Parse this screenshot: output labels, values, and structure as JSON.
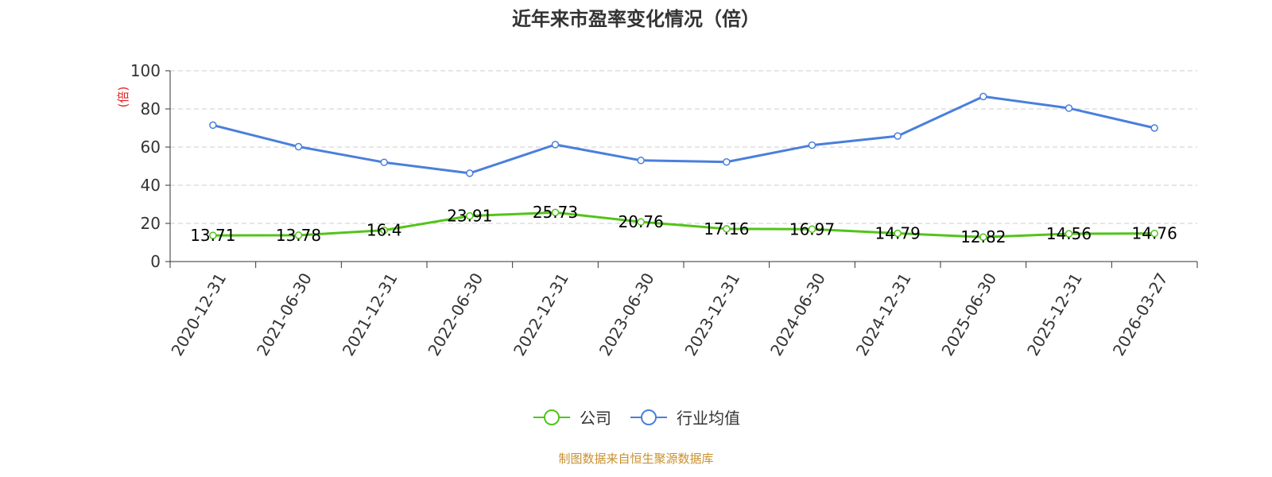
{
  "chart_data": {
    "type": "line",
    "title": "近年来市盈率变化情况（倍）",
    "ylabel": "(倍)",
    "ylim": [
      0,
      100
    ],
    "yticks": [
      0,
      20,
      40,
      60,
      80,
      100
    ],
    "grid": true,
    "legend_position": "bottom",
    "categories": [
      "2020-12-31",
      "2021-06-30",
      "2021-12-31",
      "2022-06-30",
      "2022-12-31",
      "2023-06-30",
      "2023-12-31",
      "2024-06-30",
      "2024-12-31",
      "2025-06-30",
      "2025-12-31",
      "2026-03-27"
    ],
    "series": [
      {
        "name": "公司",
        "color": "#52c41a",
        "values": [
          13.71,
          13.78,
          16.4,
          23.91,
          25.73,
          20.76,
          17.16,
          16.97,
          14.79,
          12.82,
          14.56,
          14.76
        ],
        "labels": [
          "13.71",
          "13.78",
          "16.4",
          "23.91",
          "25.73",
          "20.76",
          "17.16",
          "16.97",
          "14.79",
          "12.82",
          "14.56",
          "14.76"
        ]
      },
      {
        "name": "行业均值",
        "color": "#4a7fdc",
        "values": [
          71.5,
          60.2,
          52.0,
          46.3,
          61.3,
          53.0,
          52.2,
          61.0,
          65.8,
          86.5,
          80.4,
          70.0
        ]
      }
    ]
  },
  "source_note": "制图数据来自恒生聚源数据库"
}
